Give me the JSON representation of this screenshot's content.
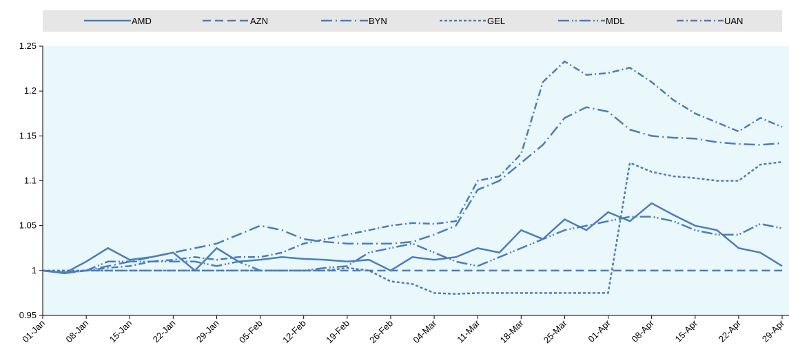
{
  "chart_data": {
    "type": "line",
    "categories": [
      "01-Jan",
      null,
      "08-Jan",
      null,
      "15-Jan",
      null,
      "22-Jan",
      null,
      "29-Jan",
      null,
      "05-Feb",
      null,
      "12-Feb",
      null,
      "19-Feb",
      null,
      "26-Feb",
      null,
      "04-Mar",
      null,
      "11-Mar",
      null,
      "18-Mar",
      null,
      "25-Mar",
      null,
      "01-Apr",
      null,
      "08-Apr",
      null,
      "15-Apr",
      null,
      "22-Apr",
      null,
      "29-Apr"
    ],
    "series": [
      {
        "name": "AMD",
        "color": "#4a7ebb",
        "values": [
          1,
          0.997,
          1.01,
          1.025,
          1.012,
          1.015,
          1.02,
          1.0,
          1.025,
          1.01,
          1.012,
          1.015,
          1.013,
          1.012,
          1.01,
          1.012,
          1.0,
          1.015,
          1.012,
          1.015,
          1.025,
          1.02,
          1.045,
          1.035,
          1.057,
          1.045,
          1.065,
          1.055,
          1.075,
          1.062,
          1.05,
          1.045,
          1.025,
          1.02,
          1.005
        ]
      },
      {
        "name": "AZN",
        "color": "#4a7ebb",
        "values": [
          1,
          0.997,
          1,
          1,
          1,
          1,
          1,
          1,
          1,
          1,
          1,
          1,
          1,
          1,
          1,
          1,
          1,
          1,
          1,
          1,
          1,
          1,
          1,
          1,
          1,
          1,
          1,
          1,
          1,
          1,
          1,
          1,
          1,
          1,
          1
        ]
      },
      {
        "name": "BYN",
        "color": "#4a7ebb",
        "values": [
          1,
          0.998,
          1.0,
          1.005,
          1.01,
          1.015,
          1.02,
          1.025,
          1.03,
          1.04,
          1.05,
          1.045,
          1.035,
          1.032,
          1.03,
          1.03,
          1.03,
          1.032,
          1.04,
          1.05,
          1.09,
          1.1,
          1.12,
          1.14,
          1.17,
          1.182,
          1.177,
          1.157,
          1.15,
          1.148,
          1.147,
          1.143,
          1.141,
          1.14,
          1.142
        ]
      },
      {
        "name": "GEL",
        "color": "#4a7ebb",
        "values": [
          1,
          1,
          1,
          1,
          1,
          1,
          1,
          1,
          1,
          1,
          1,
          1,
          1,
          1,
          1.003,
          1.0,
          0.988,
          0.985,
          0.975,
          0.974,
          0.975,
          0.975,
          0.975,
          0.975,
          0.975,
          0.975,
          0.975,
          1.12,
          1.11,
          1.105,
          1.103,
          1.1,
          1.1,
          1.118,
          1.121
        ]
      },
      {
        "name": "MDL",
        "color": "#4a7ebb",
        "values": [
          1,
          0.997,
          1.0,
          1.01,
          1.01,
          1.01,
          1.01,
          1.01,
          1.005,
          1.01,
          1.0,
          1.0,
          1.0,
          1.003,
          1.005,
          1.02,
          1.025,
          1.03,
          1.02,
          1.01,
          1.005,
          1.015,
          1.025,
          1.035,
          1.045,
          1.05,
          1.055,
          1.06,
          1.06,
          1.055,
          1.045,
          1.04,
          1.04,
          1.052,
          1.047
        ]
      },
      {
        "name": "UAN",
        "color": "#4a7ebb",
        "values": [
          1,
          0.998,
          1.0,
          1.003,
          1.005,
          1.01,
          1.012,
          1.015,
          1.012,
          1.015,
          1.015,
          1.02,
          1.03,
          1.035,
          1.04,
          1.045,
          1.05,
          1.053,
          1.052,
          1.055,
          1.1,
          1.105,
          1.13,
          1.21,
          1.233,
          1.218,
          1.22,
          1.226,
          1.21,
          1.19,
          1.175,
          1.165,
          1.155,
          1.17,
          1.16
        ]
      }
    ],
    "ylim": [
      0.95,
      1.25
    ],
    "yticks": [
      0.95,
      1,
      1.05,
      1.1,
      1.15,
      1.2,
      1.25
    ]
  }
}
